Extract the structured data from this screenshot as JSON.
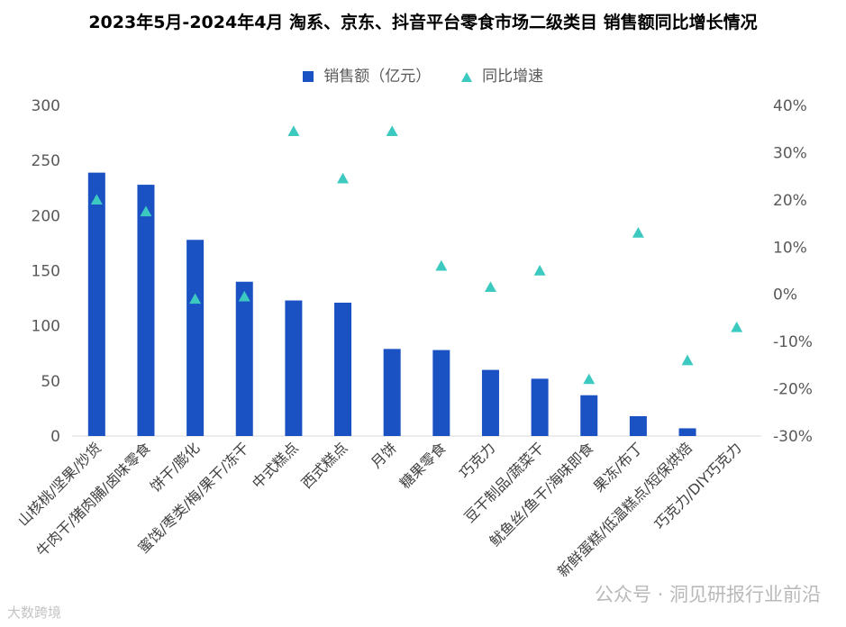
{
  "chart_data": {
    "type": "bar",
    "title": "2023年5月-2024年4月 淘系、京东、抖音平台零食市场二级类目 销售额同比增长情况",
    "categories": [
      "山核桃/坚果/炒货",
      "牛肉干/猪肉脯/卤味零食",
      "饼干/膨化",
      "蜜饯/枣类/梅/果干/冻干",
      "中式糕点",
      "西式糕点",
      "月饼",
      "糖果零食",
      "巧克力",
      "豆干制品/蔬菜干",
      "鱿鱼丝/鱼干/海味即食",
      "果冻/布丁",
      "新鲜蛋糕/低温糕点/短保烘焙",
      "巧克力/DIY巧克力"
    ],
    "series": [
      {
        "name": "销售额（亿元）",
        "kind": "bar",
        "axis": "left",
        "color": "#1A52C3",
        "values": [
          239,
          228,
          178,
          140,
          123,
          121,
          79,
          78,
          60,
          52,
          37,
          18,
          7,
          0
        ]
      },
      {
        "name": "同比增速",
        "kind": "scatter",
        "axis": "right",
        "color": "#3CC9C0",
        "values": [
          20,
          17.5,
          -1,
          -0.5,
          34.5,
          24.5,
          34.5,
          6,
          1.5,
          5,
          -18,
          13,
          -14,
          -7
        ]
      }
    ],
    "ylim_left": [
      0,
      300
    ],
    "yticks_left": [
      "0",
      "50",
      "100",
      "150",
      "200",
      "250",
      "300"
    ],
    "ylim_right": [
      -30,
      40
    ],
    "yticks_right": [
      "-30%",
      "-20%",
      "-10%",
      "0%",
      "10%",
      "20%",
      "30%",
      "40%"
    ],
    "legend_position": "top-center",
    "grid": false
  },
  "legend": {
    "bar_label": "销售额（亿元）",
    "marker_label": "同比增速"
  },
  "watermarks": {
    "right": "公众号 · 洞见研报行业前沿",
    "left": "大数跨境"
  },
  "colors": {
    "bar": "#1A52C3",
    "marker": "#3CC9C0",
    "axis_text": "#595959"
  }
}
